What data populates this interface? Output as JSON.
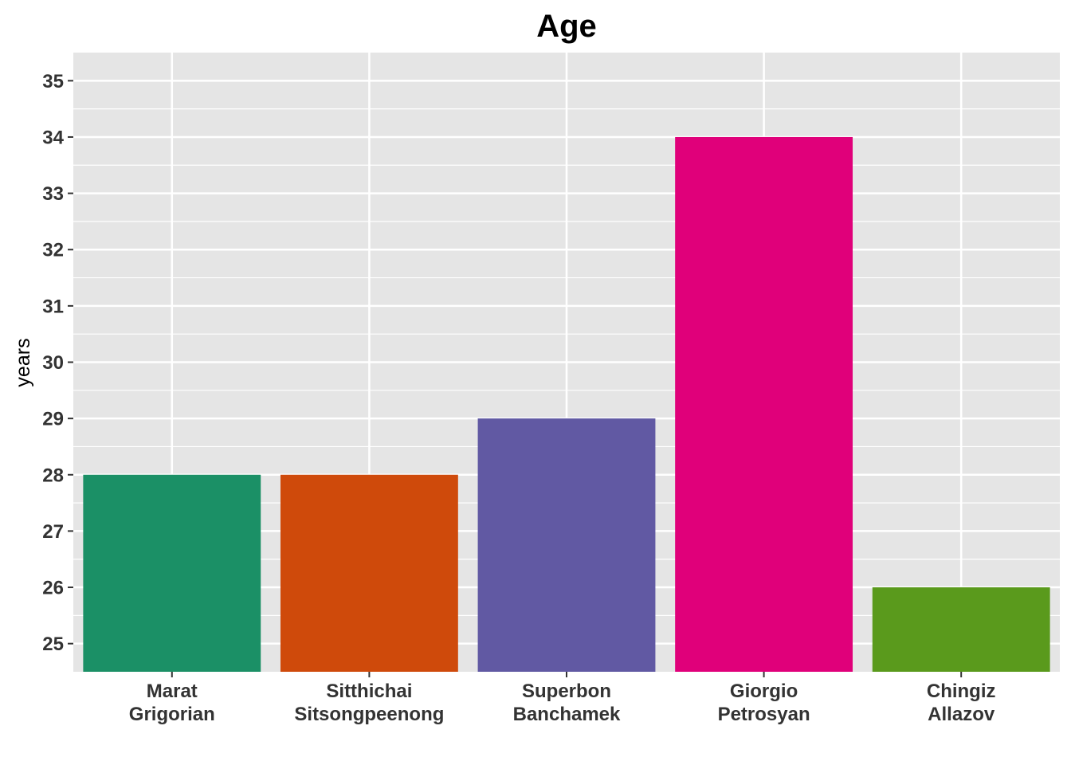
{
  "chart_data": {
    "type": "bar",
    "title": "Age",
    "xlabel": "",
    "ylabel": "years",
    "categories": [
      [
        "Marat",
        "Grigorian"
      ],
      [
        "Sitthichai",
        "Sitsongpeenong"
      ],
      [
        "Superbon",
        "Banchamek"
      ],
      [
        "Giorgio",
        "Petrosyan"
      ],
      [
        "Chingiz",
        "Allazov"
      ]
    ],
    "values": [
      28,
      28,
      29,
      34,
      26
    ],
    "colors": [
      "#1b9066",
      "#cf4a0b",
      "#6159a3",
      "#e0007a",
      "#5a9a1c"
    ],
    "ylim": [
      24.5,
      35.5
    ],
    "yticks": [
      25,
      26,
      27,
      28,
      29,
      30,
      31,
      32,
      33,
      34,
      35
    ],
    "bar_baseline": 24.5,
    "grid": true,
    "legend": "none",
    "panel_background": "#e5e5e5",
    "grid_color": "#ffffff"
  }
}
